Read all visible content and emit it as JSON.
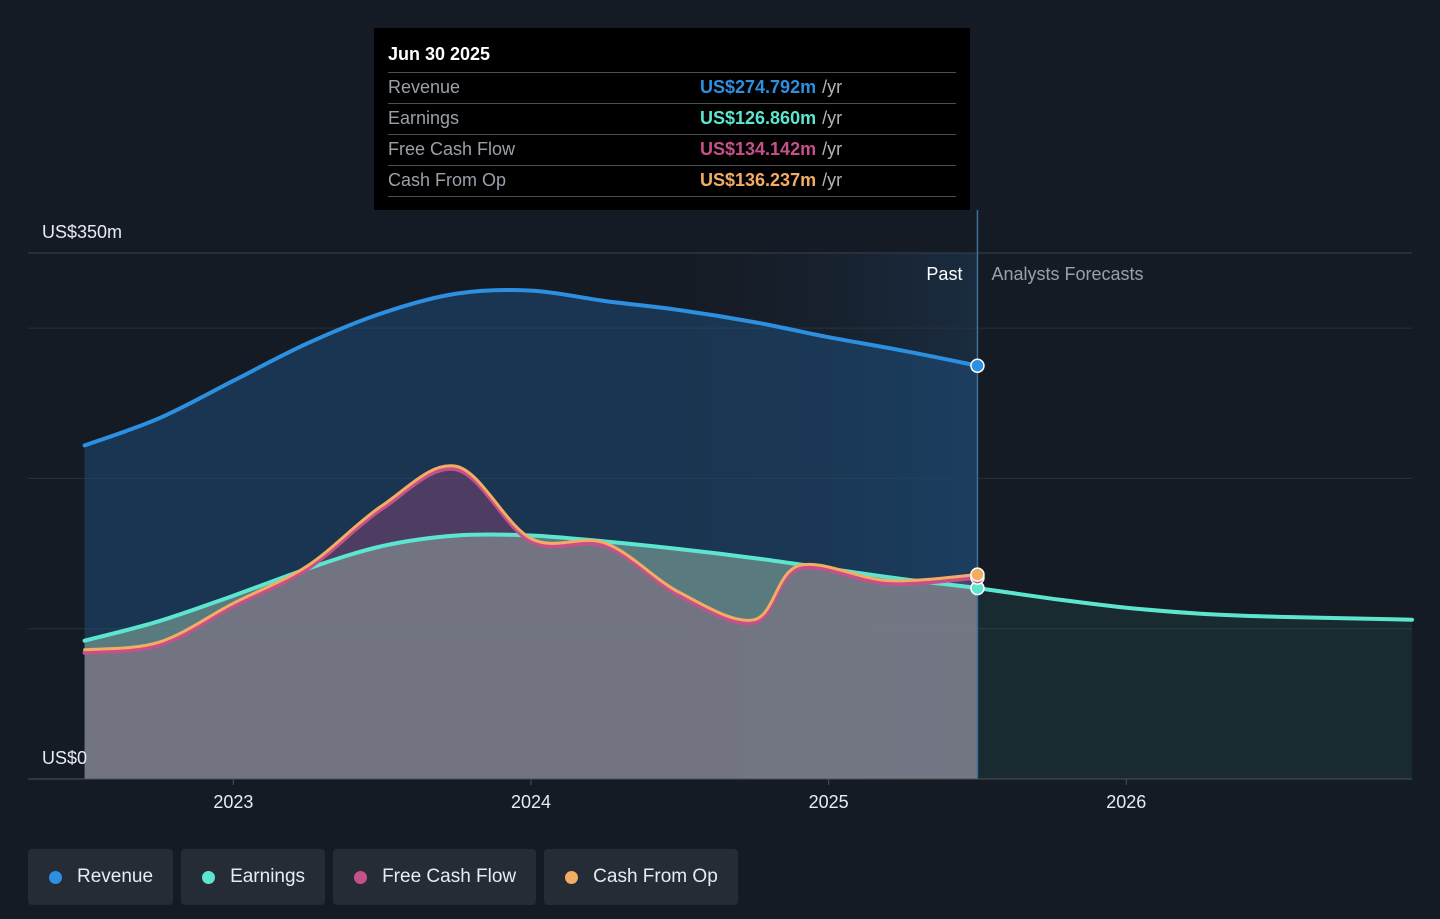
{
  "chart_data": {
    "type": "line",
    "title": "",
    "y_axis": {
      "top_label": "US$350m",
      "bottom_label": "US$0",
      "ylim": [
        0,
        350
      ]
    },
    "x_axis": {
      "ticks": [
        {
          "label": "2023",
          "t": 2023.0
        },
        {
          "label": "2024",
          "t": 2024.0
        },
        {
          "label": "2025",
          "t": 2025.0
        },
        {
          "label": "2026",
          "t": 2026.0
        }
      ]
    },
    "xlim": [
      2022.31,
      2026.96
    ],
    "past_label": "Past",
    "forecast_label": "Analysts Forecasts",
    "divider_t": 2025.5,
    "shaded_past_start_t": 2024.5,
    "series": [
      {
        "name": "Revenue",
        "color": "#2d8fe0",
        "points": [
          [
            2022.5,
            222
          ],
          [
            2022.75,
            240
          ],
          [
            2023.0,
            265
          ],
          [
            2023.25,
            290
          ],
          [
            2023.5,
            310
          ],
          [
            2023.75,
            323
          ],
          [
            2024.0,
            325
          ],
          [
            2024.25,
            318
          ],
          [
            2024.5,
            312
          ],
          [
            2024.75,
            304
          ],
          [
            2025.0,
            294
          ],
          [
            2025.25,
            285
          ],
          [
            2025.5,
            275
          ]
        ]
      },
      {
        "name": "Earnings",
        "color": "#5de6cf",
        "points": [
          [
            2022.5,
            92
          ],
          [
            2022.75,
            105
          ],
          [
            2023.0,
            122
          ],
          [
            2023.25,
            140
          ],
          [
            2023.5,
            155
          ],
          [
            2023.75,
            162
          ],
          [
            2024.0,
            162
          ],
          [
            2024.25,
            158
          ],
          [
            2024.5,
            153
          ],
          [
            2024.75,
            147
          ],
          [
            2025.0,
            140
          ],
          [
            2025.25,
            133
          ],
          [
            2025.5,
            127
          ],
          [
            2025.75,
            120
          ],
          [
            2026.0,
            114
          ],
          [
            2026.25,
            110
          ],
          [
            2026.5,
            108
          ],
          [
            2026.96,
            106
          ]
        ]
      },
      {
        "name": "Free Cash Flow",
        "color": "#c7508a",
        "points": [
          [
            2022.5,
            84
          ],
          [
            2022.75,
            89
          ],
          [
            2023.0,
            115
          ],
          [
            2023.25,
            140
          ],
          [
            2023.5,
            180
          ],
          [
            2023.75,
            206
          ],
          [
            2024.0,
            158
          ],
          [
            2024.25,
            155
          ],
          [
            2024.5,
            122
          ],
          [
            2024.75,
            104
          ],
          [
            2024.9,
            140
          ],
          [
            2025.2,
            130
          ],
          [
            2025.5,
            134
          ]
        ]
      },
      {
        "name": "Cash From Op",
        "color": "#f2ac64",
        "points": [
          [
            2022.5,
            86
          ],
          [
            2022.75,
            91
          ],
          [
            2023.0,
            117
          ],
          [
            2023.25,
            142
          ],
          [
            2023.5,
            182
          ],
          [
            2023.75,
            208
          ],
          [
            2024.0,
            160
          ],
          [
            2024.25,
            157
          ],
          [
            2024.5,
            124
          ],
          [
            2024.75,
            106
          ],
          [
            2024.9,
            142
          ],
          [
            2025.2,
            132
          ],
          [
            2025.5,
            136
          ]
        ]
      }
    ]
  },
  "tooltip": {
    "date": "Jun 30 2025",
    "rows": [
      {
        "label": "Revenue",
        "value": "US$274.792m",
        "unit": "/yr",
        "color": "#2d8fe0"
      },
      {
        "label": "Earnings",
        "value": "US$126.860m",
        "unit": "/yr",
        "color": "#5de6cf"
      },
      {
        "label": "Free Cash Flow",
        "value": "US$134.142m",
        "unit": "/yr",
        "color": "#c7508a"
      },
      {
        "label": "Cash From Op",
        "value": "US$136.237m",
        "unit": "/yr",
        "color": "#f2ac64"
      }
    ]
  },
  "legend": [
    {
      "label": "Revenue",
      "color": "#2d8fe0"
    },
    {
      "label": "Earnings",
      "color": "#5de6cf"
    },
    {
      "label": "Free Cash Flow",
      "color": "#c7508a"
    },
    {
      "label": "Cash From Op",
      "color": "#f2ac64"
    }
  ]
}
